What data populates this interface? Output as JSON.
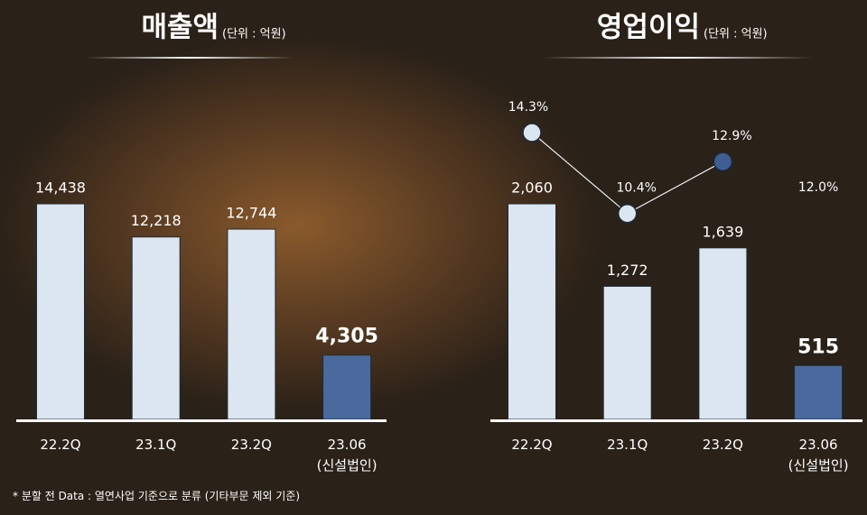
{
  "chart_data": [
    {
      "type": "bar",
      "title": "매출액",
      "subtitle": "(단위 : 억원)",
      "categories": [
        "22.2Q",
        "23.1Q",
        "23.2Q",
        "23.06\n(신설법인)"
      ],
      "values": [
        14438,
        12218,
        12744,
        4305
      ],
      "value_labels": [
        "14,438",
        "12,218",
        "12,744",
        "4,305"
      ],
      "colors": [
        "#dce6f0",
        "#dce6f0",
        "#dce6f0",
        "#4a6a9e"
      ]
    },
    {
      "type": "bar",
      "title": "영업이익",
      "subtitle": "(단위 : 억원)",
      "categories": [
        "22.2Q",
        "23.1Q",
        "23.2Q",
        "23.06\n(신설법인)"
      ],
      "values": [
        2060,
        1272,
        1639,
        515
      ],
      "value_labels": [
        "2,060",
        "1,272",
        "1,639",
        "515"
      ],
      "colors": [
        "#dce6f0",
        "#dce6f0",
        "#dce6f0",
        "#4a6a9e"
      ],
      "margin": {
        "values": [
          14.3,
          10.4,
          12.9,
          12.0
        ],
        "value_labels": [
          "14.3%",
          "10.4%",
          "12.9%",
          "12.0%"
        ],
        "marker_colors": [
          "#dce6f0",
          "#dce6f0",
          "#3f5f94",
          null
        ]
      }
    }
  ],
  "footnote": "* 분할 전 Data : 열연사업 기준으로 분류 (기타부문 제외 기준)"
}
